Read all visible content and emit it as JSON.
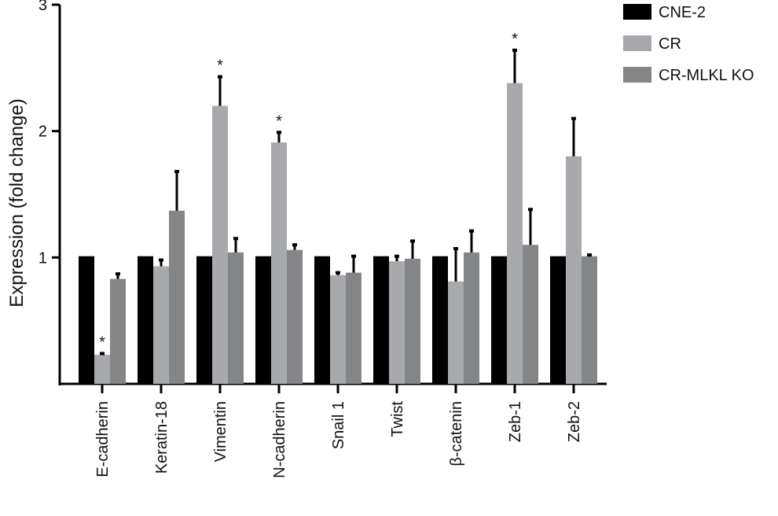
{
  "chart_data": {
    "type": "bar",
    "title": "",
    "xlabel": "",
    "ylabel": "Expression (fold change)",
    "ylim": [
      0,
      3
    ],
    "yticks": [
      1,
      2,
      3
    ],
    "legend_position": "top-right",
    "grid": false,
    "categories": [
      "E-cadherin",
      "Keratin-18",
      "Vimentin",
      "N-cadherin",
      "Snail 1",
      "Twist",
      "β-catenin",
      "Zeb-1",
      "Zeb-2"
    ],
    "series": [
      {
        "name": "CNE-2",
        "color": "#000000",
        "values": [
          1.01,
          1.01,
          1.01,
          1.01,
          1.01,
          1.01,
          1.01,
          1.01,
          1.01
        ],
        "errors": [
          0,
          0,
          0,
          0,
          0,
          0,
          0,
          0,
          0
        ]
      },
      {
        "name": "CR",
        "color": "#a8a9ad",
        "values": [
          0.23,
          0.93,
          2.2,
          1.91,
          0.86,
          0.97,
          0.81,
          2.38,
          1.8
        ],
        "errors": [
          0.01,
          0.05,
          0.23,
          0.08,
          0.02,
          0.04,
          0.26,
          0.26,
          0.3
        ]
      },
      {
        "name": "CR-MLKL KO",
        "color": "#848587",
        "values": [
          0.83,
          1.37,
          1.04,
          1.06,
          0.88,
          0.99,
          1.04,
          1.1,
          1.01
        ],
        "errors": [
          0.04,
          0.31,
          0.11,
          0.04,
          0.13,
          0.14,
          0.17,
          0.28,
          0.01
        ]
      }
    ],
    "annotations": [
      {
        "category": "E-cadherin",
        "series": "CR",
        "text": "*"
      },
      {
        "category": "Vimentin",
        "series": "CR",
        "text": "*"
      },
      {
        "category": "N-cadherin",
        "series": "CR",
        "text": "*"
      },
      {
        "category": "Zeb-1",
        "series": "CR",
        "text": "*"
      }
    ]
  }
}
